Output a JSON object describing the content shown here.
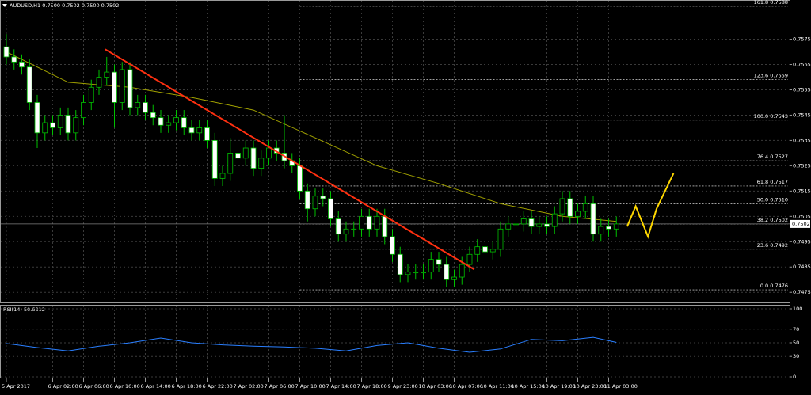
{
  "header": "AUDUSD,H1  0.7500 0.7502 0.7500 0.7502",
  "chart_data": {
    "type": "candlestick",
    "categories": [
      "5 Apr 2017",
      null,
      null,
      null,
      null,
      null,
      "6 Apr 02:00",
      null,
      null,
      null,
      "6 Apr 06:00",
      null,
      null,
      null,
      "6 Apr 10:00",
      null,
      null,
      null,
      "6 Apr 14:00",
      null,
      null,
      null,
      "6 Apr 18:00",
      null,
      null,
      null,
      "6 Apr 22:00",
      null,
      null,
      null,
      "7 Apr 02:00",
      null,
      null,
      null,
      "7 Apr 06:00",
      null,
      null,
      null,
      "7 Apr 10:00",
      null,
      null,
      null,
      "7 Apr 14:00",
      null,
      null,
      null,
      "7 Apr 18:00",
      null,
      null,
      null,
      "9 Apr 23:00",
      null,
      null,
      null,
      "10 Apr 03:00",
      null,
      null,
      null,
      "10 Apr 07:00",
      null,
      null,
      null,
      "10 Apr 11:00",
      null,
      null,
      null,
      "10 Apr 15:00",
      null,
      null,
      null,
      "10 Apr 19:00",
      null,
      null,
      null,
      "10 Apr 23:00",
      null,
      null,
      null,
      "11 Apr 03:00",
      null
    ],
    "open": [
      0.7572,
      0.7568,
      0.7566,
      0.7564,
      0.755,
      0.7538,
      0.7542,
      0.754,
      0.7545,
      0.7538,
      0.7544,
      0.755,
      0.7556,
      0.756,
      0.7562,
      0.755,
      0.7563,
      0.7548,
      0.755,
      0.7546,
      0.7544,
      0.7541,
      0.7542,
      0.7544,
      0.754,
      0.7538,
      0.754,
      0.7535,
      0.752,
      0.7522,
      0.753,
      0.7528,
      0.7532,
      0.7524,
      0.7528,
      0.7532,
      0.753,
      0.7527,
      0.7525,
      0.7515,
      0.7508,
      0.7513,
      0.7512,
      0.7504,
      0.7498,
      0.75,
      0.75,
      0.7505,
      0.75,
      0.7505,
      0.7497,
      0.749,
      0.7482,
      0.7483,
      0.7483,
      0.7483,
      0.7488,
      0.7486,
      0.748,
      0.7481,
      0.7486,
      0.749,
      0.7493,
      0.7491,
      0.7492,
      0.75,
      0.7502,
      0.7502,
      0.7504,
      0.7501,
      0.7502,
      0.7501,
      0.7506,
      0.7512,
      0.7505,
      0.7507,
      0.751,
      0.7498,
      0.7501,
      0.75
    ],
    "high": [
      0.7577,
      0.7571,
      0.7569,
      0.7567,
      0.7553,
      0.7545,
      0.7545,
      0.7548,
      0.7548,
      0.7547,
      0.7553,
      0.7559,
      0.7563,
      0.7568,
      0.7565,
      0.7566,
      0.7566,
      0.7553,
      0.7553,
      0.7549,
      0.7547,
      0.7545,
      0.7547,
      0.7547,
      0.7543,
      0.7543,
      0.7543,
      0.7538,
      0.7525,
      0.7536,
      0.7533,
      0.7535,
      0.7535,
      0.7531,
      0.7535,
      0.7535,
      0.7545,
      0.753,
      0.7528,
      0.7518,
      0.7516,
      0.7516,
      0.7515,
      0.7507,
      0.7503,
      0.7503,
      0.7508,
      0.7508,
      0.7508,
      0.7508,
      0.75,
      0.7493,
      0.7486,
      0.7486,
      0.7486,
      0.7491,
      0.7491,
      0.7489,
      0.7484,
      0.7489,
      0.7493,
      0.7496,
      0.7496,
      0.7495,
      0.7503,
      0.7505,
      0.7505,
      0.7507,
      0.7507,
      0.7505,
      0.7505,
      0.7509,
      0.7515,
      0.7515,
      0.751,
      0.7513,
      0.7513,
      0.7504,
      0.7504,
      0.7505
    ],
    "low": [
      0.7565,
      0.7563,
      0.7561,
      0.7547,
      0.7532,
      0.7535,
      0.7537,
      0.7537,
      0.7535,
      0.7535,
      0.7541,
      0.7547,
      0.7553,
      0.7557,
      0.754,
      0.7547,
      0.7545,
      0.7545,
      0.7543,
      0.7541,
      0.7538,
      0.7538,
      0.7539,
      0.7537,
      0.7535,
      0.7535,
      0.7532,
      0.7517,
      0.7517,
      0.7519,
      0.7525,
      0.7525,
      0.7521,
      0.7521,
      0.7525,
      0.7527,
      0.7524,
      0.7522,
      0.7512,
      0.7503,
      0.7505,
      0.7509,
      0.7501,
      0.7495,
      0.7495,
      0.7497,
      0.7497,
      0.7497,
      0.7497,
      0.7494,
      0.7487,
      0.7479,
      0.7479,
      0.748,
      0.748,
      0.748,
      0.7483,
      0.7477,
      0.7477,
      0.7478,
      0.7483,
      0.7487,
      0.7488,
      0.7488,
      0.7489,
      0.7497,
      0.7499,
      0.7499,
      0.7498,
      0.7498,
      0.7498,
      0.7498,
      0.7503,
      0.7502,
      0.7502,
      0.7504,
      0.7495,
      0.7495,
      0.7497,
      0.7497
    ],
    "close": [
      0.7568,
      0.7566,
      0.7564,
      0.755,
      0.7538,
      0.7542,
      0.754,
      0.7545,
      0.7538,
      0.7544,
      0.755,
      0.7556,
      0.756,
      0.7562,
      0.755,
      0.7563,
      0.7548,
      0.755,
      0.7546,
      0.7544,
      0.7541,
      0.7542,
      0.7544,
      0.754,
      0.7538,
      0.754,
      0.7535,
      0.752,
      0.7522,
      0.753,
      0.7528,
      0.7532,
      0.7524,
      0.7528,
      0.7532,
      0.753,
      0.7527,
      0.7525,
      0.7515,
      0.7508,
      0.7513,
      0.7512,
      0.7504,
      0.7498,
      0.75,
      0.75,
      0.7505,
      0.75,
      0.7505,
      0.7497,
      0.749,
      0.7482,
      0.7483,
      0.7483,
      0.7483,
      0.7488,
      0.7486,
      0.748,
      0.7481,
      0.7486,
      0.749,
      0.7493,
      0.7491,
      0.7492,
      0.75,
      0.7502,
      0.7502,
      0.7504,
      0.7501,
      0.7502,
      0.7501,
      0.7506,
      0.7512,
      0.7505,
      0.7507,
      0.751,
      0.7498,
      0.7501,
      0.75,
      0.7502
    ],
    "ylim": [
      0.7471,
      0.7588
    ],
    "yticks": [
      0.7575,
      0.7565,
      0.7555,
      0.7545,
      0.7535,
      0.7525,
      0.7515,
      0.7505,
      0.7495,
      0.7485,
      0.7475
    ],
    "grid": true,
    "colors": {
      "bull_body": "#000000",
      "bear_body": "#ffffff",
      "wick": "#00c000",
      "moving_average": "#a0a000",
      "trendline": "#ff3010",
      "projection": "#ffd800",
      "fibonacci": "#ffffff",
      "last_price": "#808080"
    },
    "moving_average": {
      "x": [
        0,
        8,
        16,
        24,
        32,
        40,
        48,
        56,
        64,
        72,
        79
      ],
      "values": [
        0.757,
        0.7558,
        0.7556,
        0.7552,
        0.7547,
        0.7536,
        0.7525,
        0.7518,
        0.751,
        0.7505,
        0.7503
      ]
    },
    "trendline": {
      "x": [
        12.8,
        60.6
      ],
      "values": [
        0.7571,
        0.7484
      ]
    },
    "projection": {
      "x": [
        80.4,
        81.5,
        83.1,
        84.2,
        86.4
      ],
      "values": [
        0.7501,
        0.7509,
        0.7497,
        0.7508,
        0.7522
      ]
    },
    "fibonacci": [
      {
        "value": 0.7588,
        "label": "161.8 0.7588"
      },
      {
        "value": 0.7559,
        "label": "123.6 0.7559"
      },
      {
        "value": 0.7543,
        "label": "100.0 0.7543"
      },
      {
        "value": 0.7527,
        "label": "76.4 0.7527"
      },
      {
        "value": 0.7517,
        "label": "61.8 0.7517"
      },
      {
        "value": 0.751,
        "label": "50.0 0.7510"
      },
      {
        "value": 0.7502,
        "label": "38.2 0.7502"
      },
      {
        "value": 0.7492,
        "label": "23.6 0.7492"
      },
      {
        "value": 0.7476,
        "label": "0.0 0.7476"
      }
    ],
    "last_price": 0.7502
  },
  "rsi": {
    "label": "RSI(14) 50.6312",
    "color": "#2a7fff",
    "ylim": [
      0,
      100
    ],
    "yticks": [
      100,
      70,
      50,
      30,
      0
    ],
    "x": [
      0,
      4,
      8,
      12,
      16,
      20,
      24,
      28,
      32,
      36,
      40,
      44,
      48,
      52,
      56,
      60,
      64,
      68,
      72,
      76,
      79
    ],
    "values": [
      49,
      43,
      38,
      45,
      50,
      57,
      50,
      47,
      45,
      44,
      42,
      38,
      46,
      50,
      42,
      36,
      41,
      55,
      53,
      58,
      50.6312
    ]
  }
}
